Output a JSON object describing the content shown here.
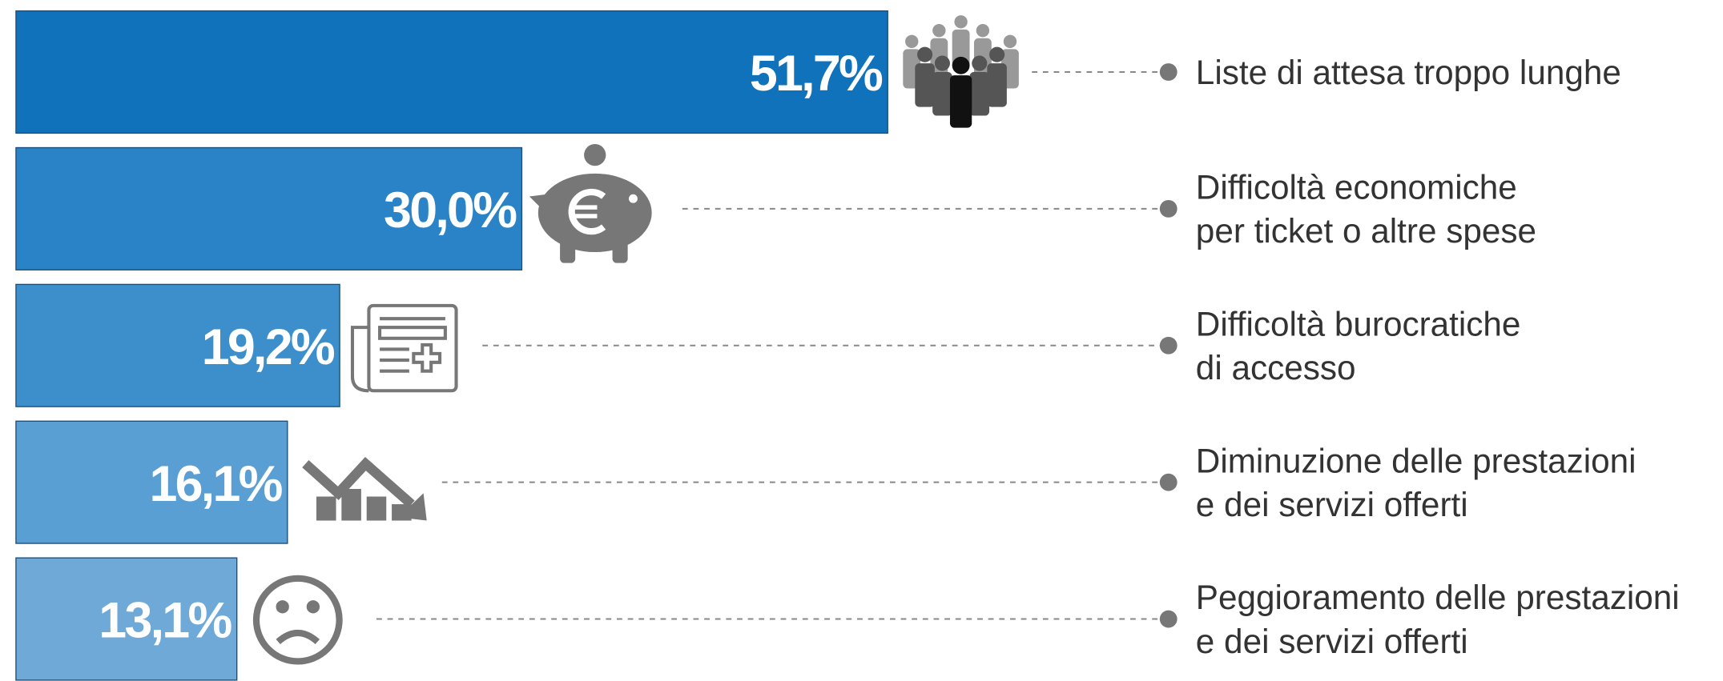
{
  "chart_data": {
    "type": "bar",
    "orientation": "horizontal",
    "categories": [
      [
        "Liste di attesa troppo lunghe"
      ],
      [
        "Difficoltà economiche",
        "per ticket o altre spese"
      ],
      [
        "Difficoltà burocratiche",
        "di accesso"
      ],
      [
        "Diminuzione delle prestazioni",
        "e dei servizi offerti"
      ],
      [
        "Peggioramento delle prestazioni",
        "e dei servizi offerti"
      ]
    ],
    "values": [
      51.7,
      30.0,
      19.2,
      16.1,
      13.1
    ],
    "value_labels": [
      "51,7%",
      "30,0%",
      "19,2%",
      "16,1%",
      "13,1%"
    ],
    "colors": [
      "#1172bc",
      "#2a83c6",
      "#3d8fcc",
      "#5a9fd4",
      "#6fa9d8"
    ]
  }
}
